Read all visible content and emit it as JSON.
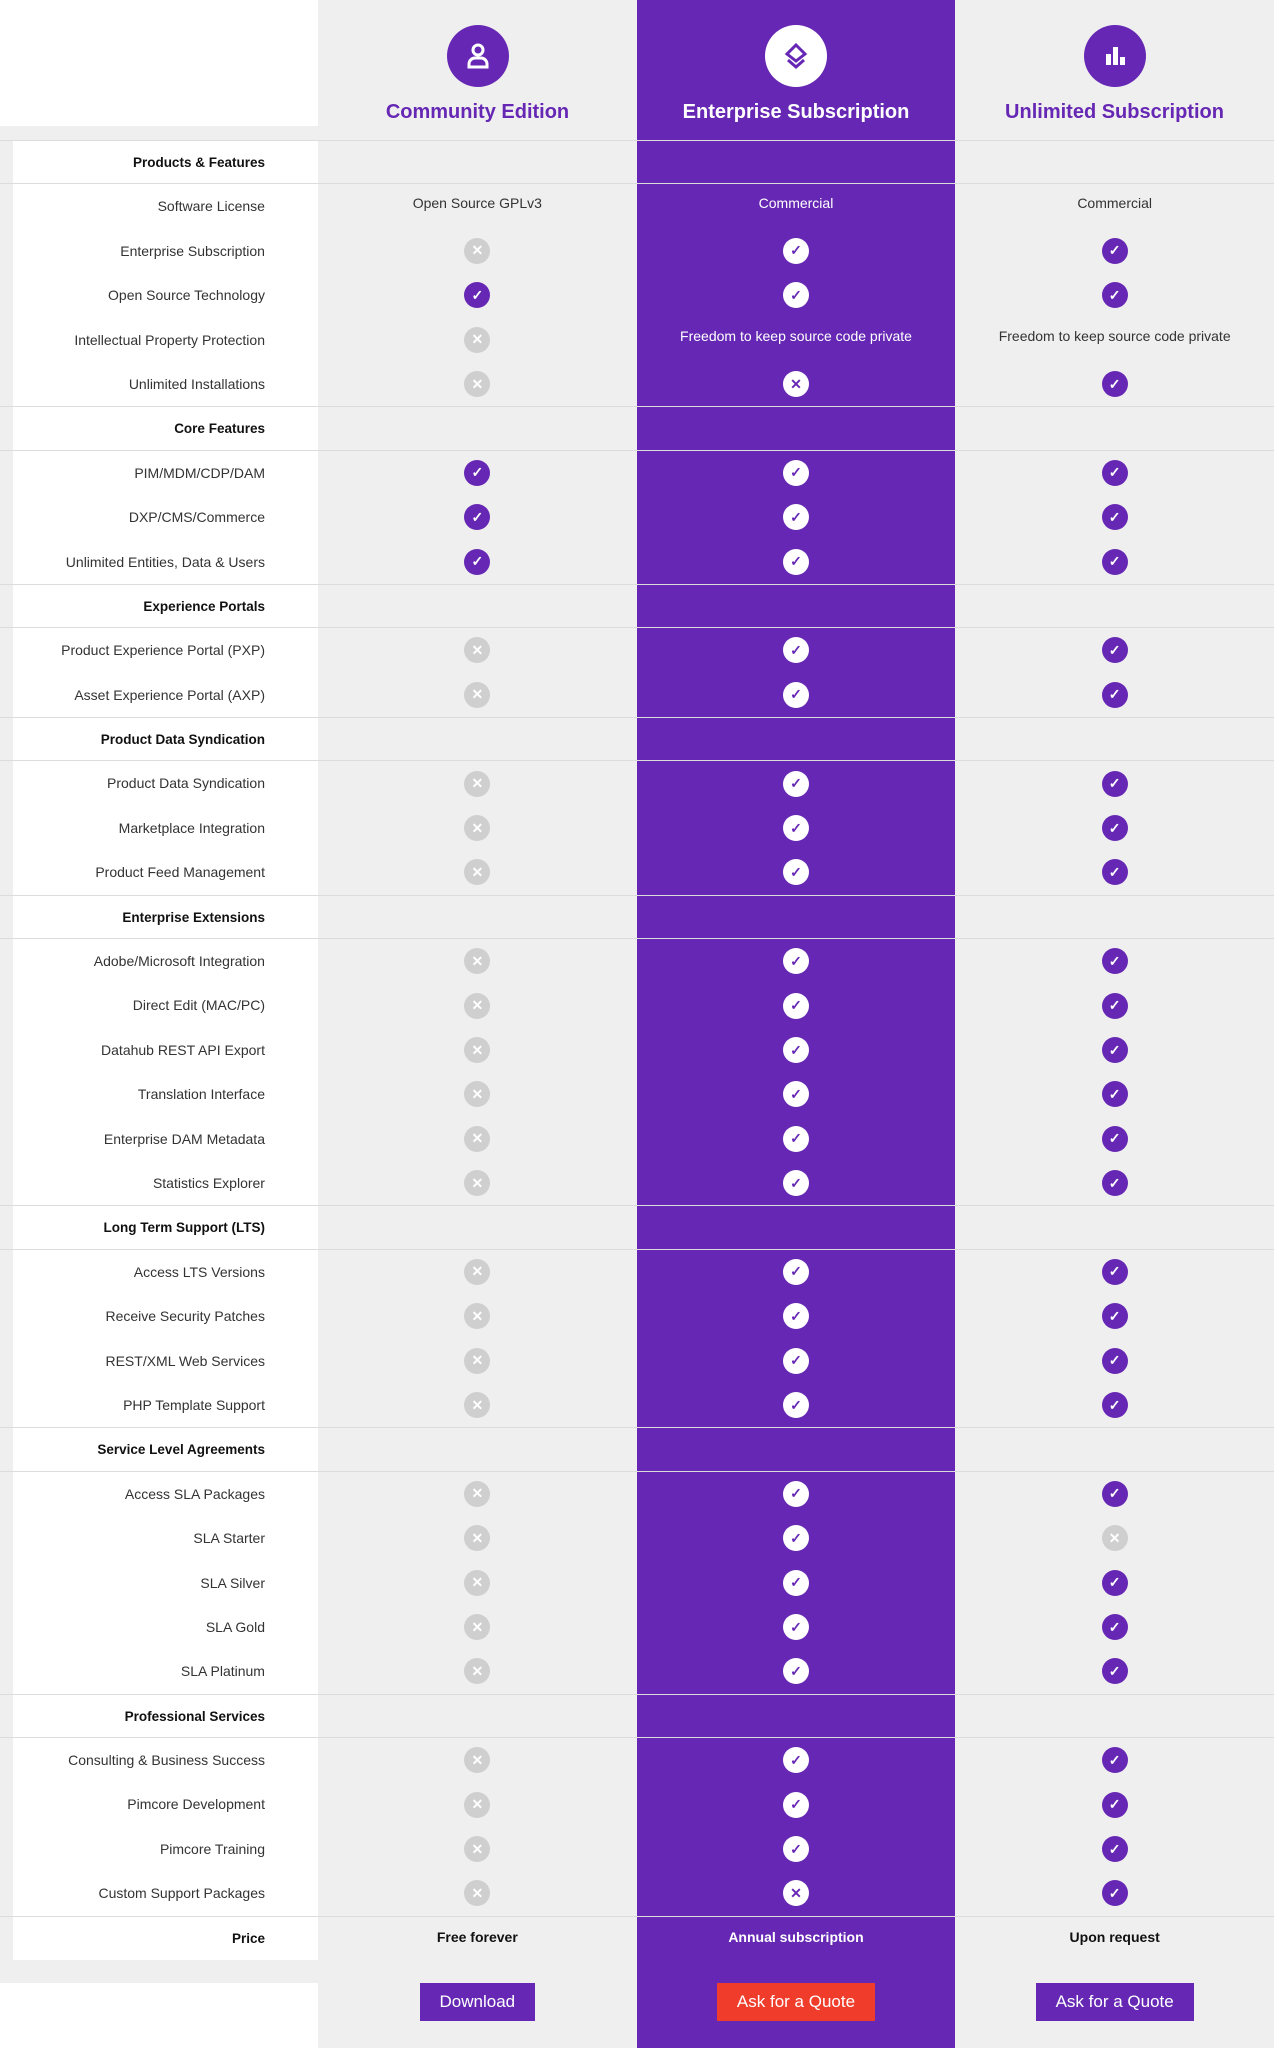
{
  "colors": {
    "purple": "#6628b4",
    "red": "#f03c2a",
    "gray_x": "#cfcfcf"
  },
  "plans": [
    {
      "title": "Community Edition",
      "icon": "user-icon",
      "price": "Free forever",
      "button": "Download"
    },
    {
      "title": "Enterprise Subscription",
      "icon": "layers-icon",
      "price": "Annual subscription",
      "button": "Ask for a Quote"
    },
    {
      "title": "Unlimited Subscription",
      "icon": "bar-chart-icon",
      "price": "Upon request",
      "button": "Ask for a Quote"
    }
  ],
  "price_label": "Price",
  "sections": [
    {
      "title": "Products & Features",
      "rows": [
        {
          "label": "Software License",
          "values": [
            "Open Source GPLv3",
            "Commercial",
            "Commercial"
          ]
        },
        {
          "label": "Enterprise Subscription",
          "values": [
            "no",
            "yes",
            "yes"
          ]
        },
        {
          "label": "Open Source Technology",
          "values": [
            "yes",
            "yes",
            "yes"
          ]
        },
        {
          "label": "Intellectual Property Protection",
          "values": [
            "no",
            "Freedom to keep source code private",
            "Freedom to keep source code private"
          ]
        },
        {
          "label": "Unlimited Installations",
          "values": [
            "no",
            "no",
            "yes"
          ]
        }
      ]
    },
    {
      "title": "Core Features",
      "rows": [
        {
          "label": "PIM/MDM/CDP/DAM",
          "values": [
            "yes",
            "yes",
            "yes"
          ]
        },
        {
          "label": "DXP/CMS/Commerce",
          "values": [
            "yes",
            "yes",
            "yes"
          ]
        },
        {
          "label": "Unlimited Entities, Data & Users",
          "values": [
            "yes",
            "yes",
            "yes"
          ]
        }
      ]
    },
    {
      "title": "Experience Portals",
      "rows": [
        {
          "label": "Product Experience Portal (PXP)",
          "values": [
            "no",
            "yes",
            "yes"
          ]
        },
        {
          "label": "Asset Experience Portal (AXP)",
          "values": [
            "no",
            "yes",
            "yes"
          ]
        }
      ]
    },
    {
      "title": "Product Data Syndication",
      "rows": [
        {
          "label": "Product Data Syndication",
          "values": [
            "no",
            "yes",
            "yes"
          ]
        },
        {
          "label": "Marketplace Integration",
          "values": [
            "no",
            "yes",
            "yes"
          ]
        },
        {
          "label": "Product Feed Management",
          "values": [
            "no",
            "yes",
            "yes"
          ]
        }
      ]
    },
    {
      "title": "Enterprise Extensions",
      "rows": [
        {
          "label": "Adobe/Microsoft Integration",
          "values": [
            "no",
            "yes",
            "yes"
          ]
        },
        {
          "label": "Direct Edit (MAC/PC)",
          "values": [
            "no",
            "yes",
            "yes"
          ]
        },
        {
          "label": "Datahub REST API Export",
          "values": [
            "no",
            "yes",
            "yes"
          ]
        },
        {
          "label": "Translation Interface",
          "values": [
            "no",
            "yes",
            "yes"
          ]
        },
        {
          "label": "Enterprise DAM Metadata",
          "values": [
            "no",
            "yes",
            "yes"
          ]
        },
        {
          "label": "Statistics Explorer",
          "values": [
            "no",
            "yes",
            "yes"
          ]
        }
      ]
    },
    {
      "title": "Long Term Support (LTS)",
      "rows": [
        {
          "label": "Access LTS Versions",
          "values": [
            "no",
            "yes",
            "yes"
          ]
        },
        {
          "label": "Receive Security Patches",
          "values": [
            "no",
            "yes",
            "yes"
          ]
        },
        {
          "label": "REST/XML Web Services",
          "values": [
            "no",
            "yes",
            "yes"
          ]
        },
        {
          "label": "PHP Template Support",
          "values": [
            "no",
            "yes",
            "yes"
          ]
        }
      ]
    },
    {
      "title": "Service Level Agreements",
      "rows": [
        {
          "label": "Access SLA Packages",
          "values": [
            "no",
            "yes",
            "yes"
          ]
        },
        {
          "label": "SLA Starter",
          "values": [
            "no",
            "yes",
            "no"
          ]
        },
        {
          "label": "SLA Silver",
          "values": [
            "no",
            "yes",
            "yes"
          ]
        },
        {
          "label": "SLA Gold",
          "values": [
            "no",
            "yes",
            "yes"
          ]
        },
        {
          "label": "SLA Platinum",
          "values": [
            "no",
            "yes",
            "yes"
          ]
        }
      ]
    },
    {
      "title": "Professional Services",
      "rows": [
        {
          "label": "Consulting & Business Success",
          "values": [
            "no",
            "yes",
            "yes"
          ]
        },
        {
          "label": "Pimcore Development",
          "values": [
            "no",
            "yes",
            "yes"
          ]
        },
        {
          "label": "Pimcore Training",
          "values": [
            "no",
            "yes",
            "yes"
          ]
        },
        {
          "label": "Custom Support Packages",
          "values": [
            "no",
            "no",
            "yes"
          ]
        }
      ]
    }
  ]
}
